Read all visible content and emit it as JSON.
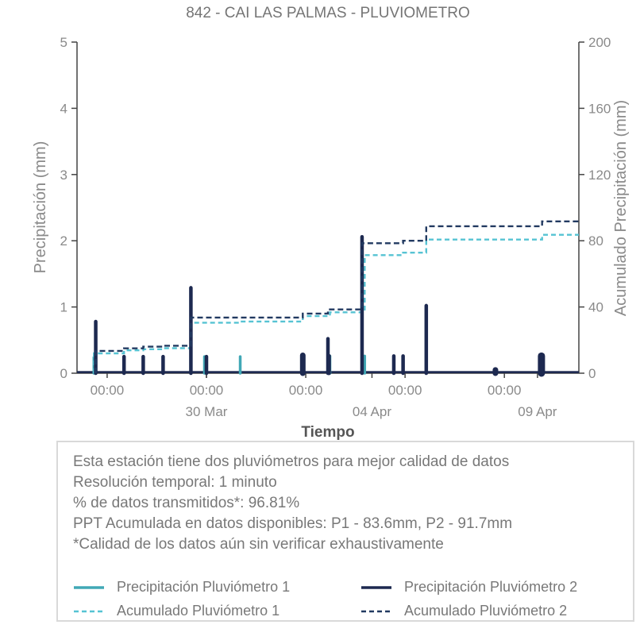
{
  "colors": {
    "p1_precip": "#41a8b6",
    "p1_accum": "#56c3d3",
    "p2_precip": "#1d2950",
    "p2_accum": "#223a61",
    "axis_line": "#444444",
    "tick_text": "#8a8a8a",
    "title_text": "#757575",
    "xlabel_text": "#555555",
    "info_text": "#787878",
    "box_border": "#d9d9d9"
  },
  "chart_data": {
    "type": "line",
    "title": "842 - CAI LAS PALMAS - PLUVIOMETRO",
    "xlabel": "Tiempo",
    "ylabel_left": "Precipitación (mm)",
    "ylabel_right": "Acumulado Precipitación (mm)",
    "y_left": {
      "range": [
        0,
        5
      ],
      "ticks": [
        0,
        1,
        2,
        3,
        4,
        5
      ]
    },
    "y_right": {
      "range": [
        0,
        200
      ],
      "ticks": [
        0,
        40,
        80,
        120,
        160,
        200
      ]
    },
    "x_axis": {
      "range_days": [
        0.09,
        15.25
      ],
      "time_ticks": [
        {
          "day": 1,
          "label": "00:00"
        },
        {
          "day": 4,
          "label": "00:00"
        },
        {
          "day": 7,
          "label": "00:00"
        },
        {
          "day": 10,
          "label": "00:00"
        },
        {
          "day": 13,
          "label": "00:00"
        }
      ],
      "date_ticks": [
        {
          "day": 4,
          "label": "30 Mar"
        },
        {
          "day": 9,
          "label": "04 Apr"
        },
        {
          "day": 14,
          "label": "09 Apr"
        }
      ]
    },
    "grid": false,
    "legend_position": "bottom-box",
    "baseline_mm": 0.01,
    "series": [
      {
        "name": "Precipitación Pluviómetro 1",
        "axis": "left",
        "style": "spikes",
        "color_key": "p1_precip",
        "points": [
          {
            "day": 0.6,
            "mm": 0.24,
            "w": 3.5
          },
          {
            "day": 3.94,
            "mm": 0.25,
            "w": 3.5
          },
          {
            "day": 5.02,
            "mm": 0.25,
            "w": 3.5
          },
          {
            "day": 7.73,
            "mm": 0.26,
            "w": 3.5
          },
          {
            "day": 8.78,
            "mm": 0.26,
            "w": 3.5
          }
        ]
      },
      {
        "name": "Acumulado Pluviómetro 1",
        "axis": "right",
        "style": "dashed-step",
        "color_key": "p1_accum",
        "points": [
          [
            0.6,
            0
          ],
          [
            0.6,
            12.0
          ],
          [
            1.51,
            13.8
          ],
          [
            2.09,
            14.5
          ],
          [
            2.69,
            15.1
          ],
          [
            3.53,
            30.5
          ],
          [
            5.02,
            31.2
          ],
          [
            6.91,
            34.5
          ],
          [
            7.73,
            36.8
          ],
          [
            8.78,
            71.3
          ],
          [
            9.94,
            72.8
          ],
          [
            10.64,
            80.7
          ],
          [
            14.14,
            83.6
          ],
          [
            15.25,
            83.6
          ]
        ]
      },
      {
        "name": "Precipitación Pluviómetro 2",
        "axis": "left",
        "style": "spikes",
        "color_key": "p2_precip",
        "points": [
          {
            "day": 0.655,
            "mm": 0.78,
            "w": 4.5
          },
          {
            "day": 1.51,
            "mm": 0.25,
            "w": 4.5
          },
          {
            "day": 2.09,
            "mm": 0.25,
            "w": 4.5
          },
          {
            "day": 2.69,
            "mm": 0.25,
            "w": 4.5
          },
          {
            "day": 3.53,
            "mm": 1.29,
            "w": 4.5
          },
          {
            "day": 4.0,
            "mm": 0.25,
            "w": 4.5
          },
          {
            "day": 6.91,
            "mm": 0.27,
            "w": 7
          },
          {
            "day": 7.67,
            "mm": 0.52,
            "w": 4.5
          },
          {
            "day": 7.7,
            "mm": 0.26,
            "w": 5
          },
          {
            "day": 8.7,
            "mm": 2.06,
            "w": 4.5
          },
          {
            "day": 9.66,
            "mm": 0.26,
            "w": 4.5
          },
          {
            "day": 9.94,
            "mm": 0.26,
            "w": 4.5
          },
          {
            "day": 10.64,
            "mm": 1.02,
            "w": 4.5
          },
          {
            "day": 12.73,
            "mm": 0.05,
            "w": 7
          },
          {
            "day": 14.12,
            "mm": 0.26,
            "w": 9
          }
        ]
      },
      {
        "name": "Acumulado Pluviómetro 2",
        "axis": "right",
        "style": "dashed-step",
        "color_key": "p2_accum",
        "points": [
          [
            0.655,
            0
          ],
          [
            0.655,
            13.5
          ],
          [
            1.51,
            15.0
          ],
          [
            2.09,
            16.0
          ],
          [
            2.69,
            16.6
          ],
          [
            3.53,
            33.6
          ],
          [
            6.91,
            36.0
          ],
          [
            7.67,
            38.5
          ],
          [
            8.7,
            78.5
          ],
          [
            9.94,
            80.0
          ],
          [
            10.64,
            88.8
          ],
          [
            14.14,
            91.7
          ],
          [
            15.25,
            91.7
          ]
        ]
      }
    ]
  },
  "info_box": {
    "lines": [
      "Esta estación tiene dos pluviómetros para mejor calidad de datos",
      "Resolución temporal: 1 minuto",
      "% de datos transmitidos*: 96.81%",
      "PPT Acumulada en datos disponibles: P1 - 83.6mm, P2 - 91.7mm",
      "*Calidad de los datos aún sin verificar exhaustivamente"
    ]
  },
  "legend": [
    {
      "label": "Precipitación Pluviómetro 1",
      "color_key": "p1_precip",
      "dash": false
    },
    {
      "label": "Precipitación Pluviómetro 2",
      "color_key": "p2_precip",
      "dash": false
    },
    {
      "label": "Acumulado Pluviómetro 1",
      "color_key": "p1_accum",
      "dash": true
    },
    {
      "label": "Acumulado Pluviómetro 2",
      "color_key": "p2_accum",
      "dash": true
    }
  ]
}
